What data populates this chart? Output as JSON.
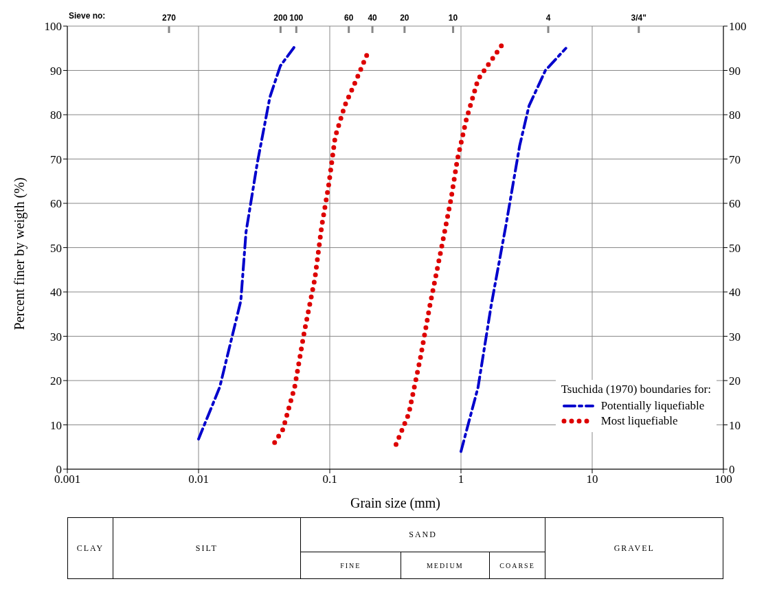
{
  "chart_data": {
    "type": "line",
    "xlabel": "Grain size (mm)",
    "ylabel": "Percent finer by weigth (%)",
    "x2label": "Sieve no:",
    "legend_title": "Tsuchida (1970) boundaries for:",
    "log": "x",
    "xlim": [
      0.001,
      100
    ],
    "xticks": [
      0.001,
      0.01,
      0.1,
      1,
      10,
      100
    ],
    "ylim": [
      0,
      100
    ],
    "yticks": [
      0,
      10,
      20,
      30,
      40,
      50,
      60,
      70,
      80,
      90,
      100
    ],
    "y2lim": [
      0,
      100
    ],
    "y2ticks": [
      0,
      10,
      20,
      30,
      40,
      50,
      60,
      70,
      80,
      90,
      100
    ],
    "grid": true,
    "legend": "bottom right",
    "marker": "none",
    "series": [
      {
        "name": "Potentially liquefiable",
        "color": "#0000cc",
        "line_style": "dashed",
        "x": [
          0.01,
          0.0145,
          0.021,
          0.023,
          0.028,
          0.035,
          0.042,
          0.055
        ],
        "values": [
          6.8,
          18.5,
          38,
          53.5,
          69,
          84,
          91,
          95.7
        ]
      },
      {
        "name": "Most liquefiable",
        "color": "#dd0000",
        "line_style": "dotted",
        "x": [
          0.038,
          0.044,
          0.054,
          0.064,
          0.077,
          0.087,
          0.098,
          0.11,
          0.13,
          0.16,
          0.195
        ],
        "values": [
          6,
          9,
          18.5,
          31,
          43,
          55,
          64,
          75,
          82,
          88,
          94
        ]
      },
      {
        "color": "#dd0000",
        "line_style": "dotted",
        "x": [
          0.32,
          0.4,
          0.49,
          0.58,
          0.7,
          0.84,
          0.94,
          1.1,
          1.35,
          2.05
        ],
        "values": [
          5.6,
          12.5,
          25,
          37,
          49,
          61,
          70,
          79,
          88,
          95.7
        ]
      },
      {
        "color": "#0000cc",
        "line_style": "dashed",
        "x": [
          1,
          1.35,
          1.7,
          2.2,
          2.8,
          3.3,
          4.4,
          6.3
        ],
        "values": [
          4,
          18.5,
          37,
          55,
          73,
          82,
          90,
          95
        ]
      }
    ],
    "annotations": [
      "CLAY",
      "SILT",
      "SAND",
      "FINE",
      "MEDIUM",
      "COARSE",
      "GRAVEL",
      "270",
      "200",
      "100",
      "60",
      "40",
      "20",
      "10",
      "4",
      "3/4\""
    ]
  }
}
